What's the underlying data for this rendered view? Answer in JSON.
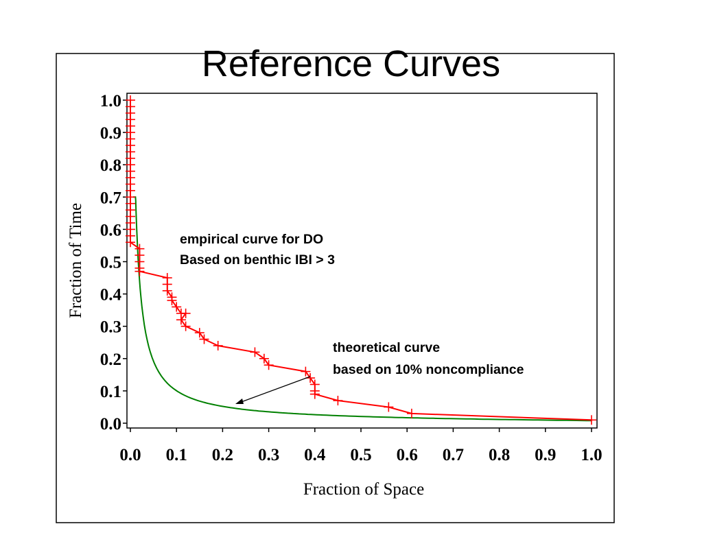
{
  "slide": {
    "title": "Reference Curves"
  },
  "chart_data": {
    "type": "line",
    "title": "",
    "xlabel": "Fraction of Space",
    "ylabel": "Fraction of Time",
    "xlim": [
      0,
      1
    ],
    "ylim": [
      0,
      1
    ],
    "x_ticks": [
      "0.0",
      "0.1",
      "0.2",
      "0.3",
      "0.4",
      "0.5",
      "0.6",
      "0.7",
      "0.8",
      "0.9",
      "1.0"
    ],
    "y_ticks": [
      "0.0",
      "0.1",
      "0.2",
      "0.3",
      "0.4",
      "0.5",
      "0.6",
      "0.7",
      "0.8",
      "0.9",
      "1.0"
    ],
    "grid": false,
    "legend": "none",
    "series": [
      {
        "color": "#ff0000",
        "marker": "plus",
        "points": [
          [
            0.0,
            1.0
          ],
          [
            0.0,
            0.98
          ],
          [
            0.0,
            0.96
          ],
          [
            0.0,
            0.94
          ],
          [
            0.0,
            0.92
          ],
          [
            0.0,
            0.9
          ],
          [
            0.0,
            0.88
          ],
          [
            0.0,
            0.86
          ],
          [
            0.0,
            0.84
          ],
          [
            0.0,
            0.82
          ],
          [
            0.0,
            0.8
          ],
          [
            0.0,
            0.78
          ],
          [
            0.0,
            0.76
          ],
          [
            0.0,
            0.74
          ],
          [
            0.0,
            0.72
          ],
          [
            0.0,
            0.7
          ],
          [
            0.0,
            0.68
          ],
          [
            0.0,
            0.66
          ],
          [
            0.0,
            0.64
          ],
          [
            0.0,
            0.62
          ],
          [
            0.0,
            0.6
          ],
          [
            0.0,
            0.58
          ],
          [
            0.0,
            0.56
          ],
          [
            0.02,
            0.54
          ],
          [
            0.02,
            0.52
          ],
          [
            0.02,
            0.5
          ],
          [
            0.02,
            0.48
          ],
          [
            0.02,
            0.47
          ],
          [
            0.08,
            0.45
          ],
          [
            0.08,
            0.43
          ],
          [
            0.08,
            0.41
          ],
          [
            0.09,
            0.39
          ],
          [
            0.09,
            0.38
          ],
          [
            0.1,
            0.36
          ],
          [
            0.11,
            0.34
          ],
          [
            0.12,
            0.34
          ],
          [
            0.11,
            0.32
          ],
          [
            0.12,
            0.3
          ],
          [
            0.15,
            0.28
          ],
          [
            0.16,
            0.26
          ],
          [
            0.19,
            0.24
          ],
          [
            0.27,
            0.22
          ],
          [
            0.29,
            0.2
          ],
          [
            0.3,
            0.18
          ],
          [
            0.38,
            0.16
          ],
          [
            0.39,
            0.14
          ],
          [
            0.4,
            0.12
          ],
          [
            0.4,
            0.1
          ],
          [
            0.4,
            0.09
          ],
          [
            0.45,
            0.07
          ],
          [
            0.56,
            0.05
          ],
          [
            0.61,
            0.03
          ],
          [
            1.0,
            0.01
          ]
        ]
      },
      {
        "color": "#008000",
        "marker": "none",
        "formula_points": "theoretical reference curve"
      }
    ],
    "annotations": [
      {
        "lines": [
          "empirical curve for DO",
          "Based on benthic IBI > 3"
        ]
      },
      {
        "lines": [
          "theoretical curve",
          "based on 10% noncompliance"
        ]
      }
    ]
  }
}
